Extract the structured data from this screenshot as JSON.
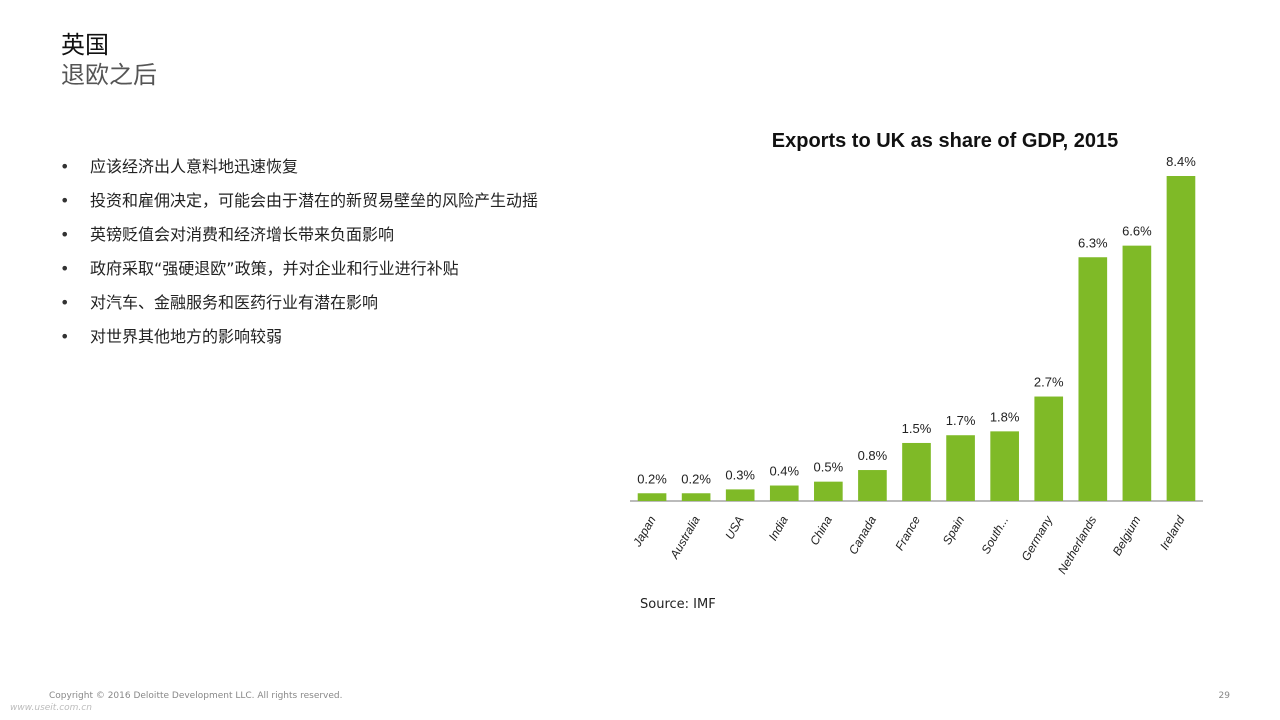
{
  "header": {
    "title": "英国",
    "subtitle": "退欧之后"
  },
  "bullets": [
    "应该经济出人意料地迅速恢复",
    "投资和雇佣决定，可能会由于潜在的新贸易壁垒的风险产生动摇",
    "英镑贬值会对消费和经济增长带来负面影响",
    "政府采取“强硬退欧”政策，并对企业和行业进行补贴",
    "对汽车、金融服务和医药行业有潜在影响",
    "对世界其他地方的影响较弱"
  ],
  "chart_data": {
    "type": "bar",
    "title": "Exports to UK as share of GDP, 2015",
    "categories": [
      "Japan",
      "Australia",
      "USA",
      "India",
      "China",
      "Canada",
      "France",
      "Spain",
      "South...",
      "Germany",
      "Netherlands",
      "Belgium",
      "Ireland"
    ],
    "values": [
      0.2,
      0.2,
      0.3,
      0.4,
      0.5,
      0.8,
      1.5,
      1.7,
      1.8,
      2.7,
      6.3,
      6.6,
      8.4
    ],
    "data_labels": [
      "0.2%",
      "0.2%",
      "0.3%",
      "0.4%",
      "0.5%",
      "0.8%",
      "1.5%",
      "1.7%",
      "1.8%",
      "2.7%",
      "6.3%",
      "6.6%",
      "8.4%"
    ],
    "xlabel": "",
    "ylabel": "",
    "ylim": [
      0,
      8.4
    ],
    "grid": false,
    "bar_color": "#7fba27",
    "axis_color": "#bbbbbb"
  },
  "source": "Source: IMF",
  "footer": {
    "copyright": "Copyright © 2016 Deloitte Development LLC. All rights reserved.",
    "watermark": "www.useit.com.cn",
    "page": "29"
  }
}
